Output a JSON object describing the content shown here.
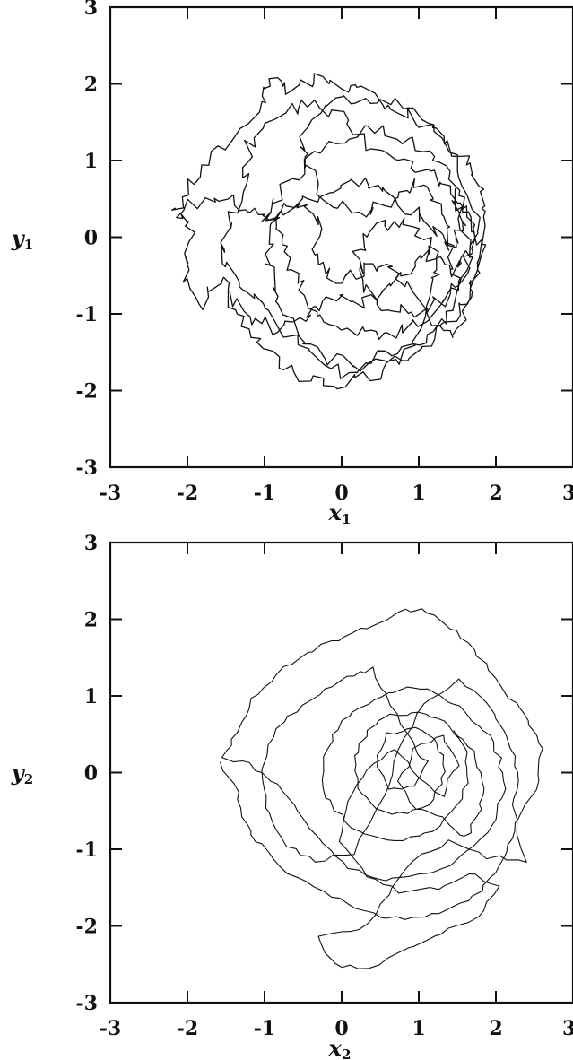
{
  "chart_data": [
    {
      "type": "line",
      "title": "",
      "xlabel": "x",
      "xlabel_sub": "1",
      "ylabel": "y",
      "ylabel_sub": "1",
      "xlim": [
        -3,
        3
      ],
      "ylim": [
        -3,
        3
      ],
      "xticks": [
        "-3",
        "-2",
        "-1",
        "0",
        "1",
        "2",
        "3"
      ],
      "yticks": [
        "3",
        "2",
        "1",
        "0",
        "-1",
        "-2",
        "-3"
      ],
      "grid": false,
      "series": [
        {
          "style": "jagged",
          "points": [
            [
              -2.2,
              0.3
            ],
            [
              -1.9,
              0.75
            ],
            [
              -1.5,
              1.2
            ],
            [
              -1.05,
              1.75
            ],
            [
              -0.95,
              2.05
            ],
            [
              -0.7,
              1.9
            ],
            [
              -0.3,
              2.05
            ],
            [
              0.1,
              1.95
            ],
            [
              0.5,
              1.8
            ],
            [
              0.9,
              1.6
            ],
            [
              1.25,
              1.35
            ],
            [
              1.6,
              1.05
            ],
            [
              1.8,
              0.6
            ],
            [
              1.85,
              0.1
            ],
            [
              1.75,
              -0.5
            ],
            [
              1.55,
              -0.95
            ],
            [
              1.2,
              -1.3
            ],
            [
              0.8,
              -1.6
            ],
            [
              0.3,
              -1.85
            ],
            [
              -0.2,
              -1.95
            ],
            [
              -0.65,
              -1.75
            ],
            [
              -1.05,
              -1.4
            ],
            [
              -1.35,
              -1.0
            ],
            [
              -1.55,
              -0.5
            ],
            [
              -1.8,
              -0.85
            ],
            [
              -2.05,
              -0.5
            ],
            [
              -1.95,
              0.0
            ],
            [
              -2.15,
              0.35
            ],
            [
              -1.6,
              0.55
            ],
            [
              -1.2,
              0.4
            ],
            [
              -1.0,
              0.25
            ],
            [
              -0.6,
              0.45
            ],
            [
              -0.2,
              0.6
            ],
            [
              0.2,
              0.75
            ],
            [
              0.55,
              0.6
            ],
            [
              0.9,
              0.35
            ],
            [
              1.2,
              0.1
            ],
            [
              1.4,
              -0.2
            ],
            [
              1.5,
              -0.6
            ],
            [
              1.3,
              -0.9
            ],
            [
              0.95,
              -1.15
            ],
            [
              0.55,
              -1.3
            ],
            [
              0.15,
              -1.2
            ],
            [
              -0.25,
              -1.0
            ],
            [
              -0.5,
              -0.7
            ],
            [
              -0.65,
              -0.35
            ],
            [
              -0.8,
              0.0
            ],
            [
              -1.0,
              0.3
            ],
            [
              -0.7,
              0.7
            ],
            [
              -0.3,
              1.1
            ],
            [
              0.15,
              1.35
            ],
            [
              0.6,
              1.4
            ],
            [
              1.0,
              1.2
            ],
            [
              1.35,
              0.85
            ],
            [
              1.6,
              0.45
            ],
            [
              1.7,
              0.0
            ],
            [
              1.6,
              -0.45
            ],
            [
              1.35,
              -0.8
            ],
            [
              1.0,
              -1.0
            ],
            [
              0.6,
              -0.95
            ],
            [
              0.3,
              -0.65
            ],
            [
              0.2,
              -0.25
            ],
            [
              0.4,
              0.1
            ],
            [
              0.75,
              0.2
            ],
            [
              1.05,
              0.05
            ],
            [
              1.25,
              -0.3
            ],
            [
              1.2,
              -0.7
            ],
            [
              0.9,
              -1.5
            ],
            [
              0.4,
              -1.7
            ],
            [
              -0.2,
              -1.6
            ],
            [
              -0.6,
              -1.3
            ],
            [
              -0.85,
              -0.8
            ],
            [
              -0.95,
              -0.3
            ],
            [
              -0.9,
              0.15
            ],
            [
              -0.6,
              0.5
            ],
            [
              -0.3,
              0.2
            ],
            [
              -0.35,
              -0.25
            ],
            [
              -0.1,
              -0.55
            ],
            [
              0.25,
              -0.45
            ],
            [
              0.55,
              -0.3
            ],
            [
              0.85,
              -0.55
            ],
            [
              1.1,
              -1.05
            ],
            [
              1.45,
              -1.3
            ],
            [
              1.7,
              -0.7
            ],
            [
              1.8,
              -0.1
            ],
            [
              1.55,
              0.4
            ],
            [
              1.3,
              0.7
            ],
            [
              0.95,
              0.95
            ],
            [
              0.5,
              1.05
            ],
            [
              0.05,
              1.55
            ],
            [
              -0.4,
              1.75
            ],
            [
              -0.85,
              1.6
            ],
            [
              -1.2,
              1.2
            ],
            [
              -1.25,
              0.75
            ],
            [
              -1.45,
              0.2
            ],
            [
              -1.6,
              -0.2
            ],
            [
              -1.3,
              -0.6
            ],
            [
              -1.0,
              -0.95
            ],
            [
              -0.55,
              -1.45
            ],
            [
              0.0,
              -1.8
            ],
            [
              0.5,
              -1.55
            ],
            [
              1.0,
              -1.35
            ],
            [
              1.4,
              -1.05
            ],
            [
              1.7,
              -0.3
            ],
            [
              1.75,
              0.35
            ],
            [
              1.5,
              0.9
            ],
            [
              1.2,
              1.5
            ],
            [
              0.75,
              1.75
            ],
            [
              0.3,
              1.85
            ],
            [
              -0.15,
              1.7
            ],
            [
              -0.5,
              1.3
            ],
            [
              -0.45,
              0.85
            ],
            [
              -0.1,
              0.4
            ],
            [
              0.35,
              0.35
            ],
            [
              0.7,
              0.55
            ],
            [
              1.0,
              0.75
            ],
            [
              1.3,
              0.3
            ],
            [
              1.45,
              -0.1
            ],
            [
              1.55,
              0.2
            ],
            [
              1.45,
              0.55
            ],
            [
              1.65,
              -0.15
            ],
            [
              1.45,
              -0.45
            ],
            [
              1.2,
              -0.2
            ],
            [
              0.9,
              -0.35
            ],
            [
              0.55,
              -0.75
            ],
            [
              0.2,
              -0.9
            ],
            [
              -0.15,
              -0.75
            ],
            [
              -0.45,
              -1.1
            ],
            [
              -0.8,
              -1.2
            ],
            [
              -1.2,
              -1.05
            ],
            [
              -1.45,
              -0.7
            ]
          ]
        }
      ]
    },
    {
      "type": "line",
      "title": "",
      "xlabel": "x",
      "xlabel_sub": "2",
      "ylabel": "y",
      "ylabel_sub": "2",
      "xlim": [
        -3,
        3
      ],
      "ylim": [
        -3,
        3
      ],
      "xticks": [
        "-3",
        "-2",
        "-1",
        "0",
        "1",
        "2",
        "3"
      ],
      "yticks": [
        "3",
        "2",
        "1",
        "0",
        "-1",
        "-2",
        "-3"
      ],
      "grid": false,
      "series": [
        {
          "style": "smooth",
          "points": [
            [
              -1.6,
              0.15
            ],
            [
              -1.35,
              -0.25
            ],
            [
              -1.25,
              -0.65
            ],
            [
              -1.05,
              -0.95
            ],
            [
              -0.7,
              -1.3
            ],
            [
              -0.25,
              -1.55
            ],
            [
              0.2,
              -1.75
            ],
            [
              0.6,
              -1.9
            ],
            [
              1.05,
              -1.9
            ],
            [
              1.45,
              -1.75
            ],
            [
              1.8,
              -1.55
            ],
            [
              2.05,
              -1.2
            ],
            [
              2.2,
              -0.85
            ],
            [
              2.35,
              -0.5
            ],
            [
              2.55,
              -0.1
            ],
            [
              2.6,
              0.3
            ],
            [
              2.45,
              0.6
            ],
            [
              2.25,
              0.9
            ],
            [
              2.0,
              1.25
            ],
            [
              1.7,
              1.6
            ],
            [
              1.4,
              1.9
            ],
            [
              1.05,
              2.15
            ],
            [
              0.75,
              2.1
            ],
            [
              0.35,
              1.9
            ],
            [
              -0.05,
              1.75
            ],
            [
              -0.45,
              1.55
            ],
            [
              -0.85,
              1.3
            ],
            [
              -1.15,
              0.95
            ],
            [
              -1.35,
              0.55
            ],
            [
              -1.55,
              0.2
            ],
            [
              -1.2,
              0.1
            ],
            [
              -0.85,
              -0.15
            ],
            [
              -0.55,
              -0.5
            ],
            [
              -0.25,
              -0.95
            ],
            [
              0.1,
              -1.25
            ],
            [
              0.55,
              -1.4
            ],
            [
              1.0,
              -1.35
            ],
            [
              1.4,
              -1.2
            ],
            [
              1.75,
              -0.95
            ],
            [
              2.0,
              -0.6
            ],
            [
              2.1,
              -0.2
            ],
            [
              2.05,
              0.2
            ],
            [
              1.85,
              0.55
            ],
            [
              1.55,
              0.85
            ],
            [
              1.2,
              1.05
            ],
            [
              0.85,
              1.1
            ],
            [
              0.5,
              1.0
            ],
            [
              0.15,
              0.8
            ],
            [
              -0.1,
              0.5
            ],
            [
              -0.25,
              0.1
            ],
            [
              -0.2,
              -0.3
            ],
            [
              0.05,
              -0.65
            ],
            [
              0.4,
              -0.85
            ],
            [
              0.8,
              -0.9
            ],
            [
              1.2,
              -0.75
            ],
            [
              1.5,
              -0.45
            ],
            [
              1.65,
              -0.05
            ],
            [
              1.6,
              0.35
            ],
            [
              1.35,
              0.65
            ],
            [
              1.0,
              0.8
            ],
            [
              0.65,
              0.75
            ],
            [
              0.35,
              0.55
            ],
            [
              0.15,
              0.2
            ],
            [
              0.2,
              -0.2
            ],
            [
              0.45,
              -0.5
            ],
            [
              0.85,
              -0.55
            ],
            [
              1.2,
              -0.35
            ],
            [
              1.35,
              0.0
            ],
            [
              1.25,
              0.4
            ],
            [
              0.95,
              0.6
            ],
            [
              0.6,
              0.5
            ],
            [
              0.45,
              0.15
            ],
            [
              0.6,
              -0.2
            ],
            [
              0.95,
              -0.2
            ],
            [
              1.1,
              0.15
            ],
            [
              0.9,
              0.4
            ],
            [
              0.65,
              0.9
            ],
            [
              0.4,
              1.35
            ],
            [
              0.05,
              1.25
            ],
            [
              -0.3,
              1.0
            ],
            [
              -0.7,
              0.75
            ],
            [
              -0.95,
              0.35
            ],
            [
              -1.05,
              -0.1
            ],
            [
              -0.95,
              -0.55
            ],
            [
              -0.7,
              -0.95
            ],
            [
              -0.35,
              -1.15
            ],
            [
              0.15,
              -1.05
            ],
            [
              0.55,
              -0.3
            ],
            [
              0.75,
              0.3
            ],
            [
              1.05,
              0.9
            ],
            [
              1.5,
              1.2
            ],
            [
              1.9,
              0.9
            ],
            [
              2.15,
              0.45
            ],
            [
              2.3,
              0.0
            ],
            [
              2.2,
              -0.45
            ],
            [
              2.4,
              -1.15
            ],
            [
              1.9,
              -1.1
            ],
            [
              1.4,
              -0.9
            ],
            [
              0.9,
              -1.15
            ],
            [
              0.6,
              -1.6
            ],
            [
              0.25,
              -2.05
            ],
            [
              -0.3,
              -2.15
            ],
            [
              -0.1,
              -2.5
            ],
            [
              0.35,
              -2.55
            ],
            [
              0.85,
              -2.3
            ],
            [
              1.3,
              -2.1
            ],
            [
              1.75,
              -1.9
            ],
            [
              2.05,
              -1.5
            ],
            [
              1.65,
              -1.3
            ],
            [
              1.25,
              -1.5
            ],
            [
              0.75,
              -1.55
            ],
            [
              0.35,
              -1.35
            ],
            [
              0.0,
              -0.9
            ],
            [
              0.05,
              -0.35
            ],
            [
              0.35,
              0.05
            ],
            [
              0.7,
              0.3
            ],
            [
              1.0,
              -0.05
            ],
            [
              1.3,
              -0.3
            ],
            [
              1.5,
              0.1
            ],
            [
              1.3,
              0.5
            ],
            [
              0.95,
              0.3
            ],
            [
              0.75,
              -0.1
            ],
            [
              0.95,
              -0.45
            ],
            [
              1.3,
              -0.6
            ],
            [
              1.6,
              -0.85
            ],
            [
              1.8,
              -0.5
            ],
            [
              1.85,
              -0.1
            ],
            [
              1.7,
              0.3
            ],
            [
              1.45,
              0.55
            ]
          ]
        }
      ]
    }
  ]
}
